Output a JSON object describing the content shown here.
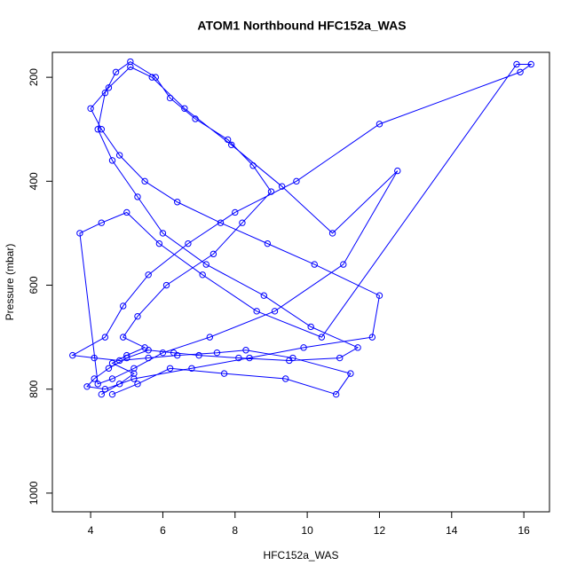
{
  "chart_data": {
    "type": "line",
    "title": "ATOM1 Northbound HFC152a_WAS",
    "x_label": "HFC152a_WAS",
    "y_label": "Pressure (mbar)",
    "x": [
      4.3,
      4.8,
      5.2,
      4.6,
      5.0,
      5.5,
      4.9,
      5.3,
      6.1,
      7.4,
      8.2,
      9.0,
      8.5,
      7.8,
      6.9,
      6.2,
      5.8,
      5.1,
      4.7,
      4.4,
      4.2,
      4.6,
      5.3,
      6.0,
      7.2,
      8.8,
      10.1,
      11.4,
      10.9,
      9.5,
      8.1,
      7.0,
      6.3,
      5.6,
      5.0,
      4.5,
      4.1,
      3.9,
      4.4,
      5.2,
      6.8,
      8.4,
      9.9,
      11.8,
      12.0,
      10.2,
      8.9,
      7.6,
      6.4,
      5.5,
      4.8,
      4.3,
      4.0,
      4.5,
      5.1,
      5.7,
      6.6,
      7.9,
      9.3,
      10.7,
      12.5,
      11.0,
      9.1,
      7.3,
      6.0,
      5.2,
      4.6,
      4.2,
      3.7,
      4.3,
      5.0,
      5.9,
      7.1,
      8.6,
      10.4,
      15.8,
      16.2,
      15.9,
      12.0,
      9.7,
      8.0,
      6.7,
      5.6,
      4.9,
      4.4,
      3.5,
      4.1,
      4.8,
      5.6,
      6.4,
      7.5,
      8.3,
      9.6,
      11.2,
      10.8,
      9.4,
      7.7,
      6.2,
      5.3,
      4.6
    ],
    "series": [
      {
        "color": "#0000ff",
        "values": [
          810,
          790,
          770,
          750,
          735,
          720,
          700,
          660,
          600,
          540,
          480,
          420,
          370,
          320,
          280,
          240,
          200,
          170,
          190,
          230,
          300,
          360,
          430,
          500,
          560,
          620,
          680,
          720,
          740,
          745,
          740,
          735,
          730,
          725,
          740,
          760,
          780,
          795,
          800,
          780,
          760,
          740,
          720,
          700,
          620,
          560,
          520,
          480,
          440,
          400,
          350,
          300,
          260,
          220,
          180,
          200,
          260,
          330,
          410,
          500,
          380,
          560,
          650,
          700,
          730,
          760,
          780,
          790,
          500,
          480,
          460,
          520,
          580,
          650,
          700,
          175,
          175,
          190,
          290,
          400,
          460,
          520,
          580,
          640,
          700,
          735,
          740,
          745,
          740,
          735,
          730,
          725,
          740,
          770,
          810,
          780,
          770,
          760,
          790,
          810
        ]
      }
    ],
    "xlim": [
      2.94,
      16.71
    ],
    "xticks": [
      4,
      6,
      8,
      10,
      12,
      14,
      16
    ],
    "ylim": [
      152,
      1036
    ],
    "yticks": [
      200,
      400,
      600,
      800,
      1000
    ],
    "y_reversed": true
  }
}
